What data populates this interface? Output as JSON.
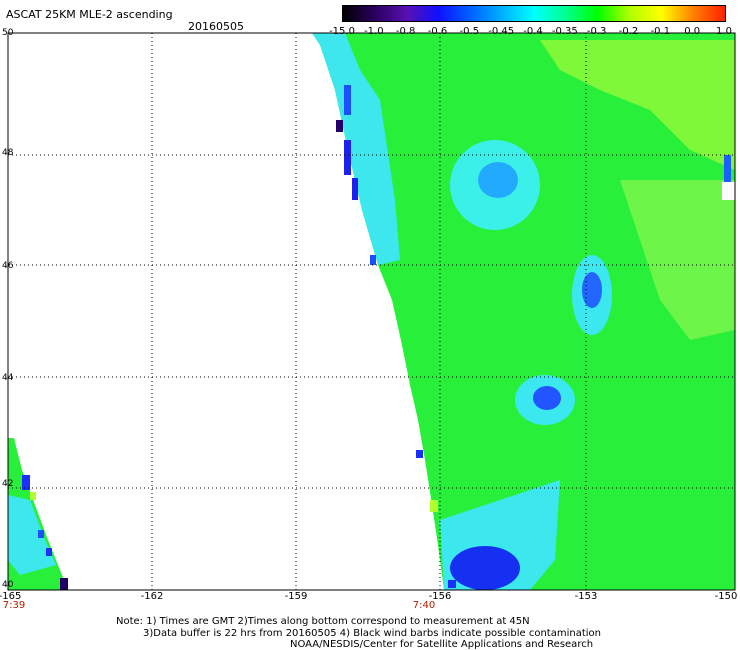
{
  "header": {
    "title": "ASCAT 25KM MLE-2 ascending",
    "date": "20160505"
  },
  "colorbar": {
    "labels": [
      "-15.0",
      "-1.0",
      "-0.8",
      "-0.6",
      "-0.5",
      "-0.45",
      "-0.4",
      "-0.35",
      "-0.3",
      "-0.2",
      "-0.1",
      "0.0",
      "1.0"
    ],
    "colors": [
      "#000000",
      "#2a0060",
      "#5a10b0",
      "#1010ff",
      "#0060ff",
      "#00b0ff",
      "#00ffff",
      "#00ff90",
      "#00ff00",
      "#b0ff00",
      "#ffff00",
      "#ff8000",
      "#ff2000"
    ]
  },
  "axes": {
    "lat_ticks": [
      "50",
      "48",
      "46",
      "44",
      "42",
      "40"
    ],
    "lon_ticks": [
      "-165",
      "-162",
      "-159",
      "-156",
      "-153",
      "-150"
    ],
    "time_labels": [
      "7:39",
      "7:40"
    ]
  },
  "notes": {
    "line1": "Note: 1) Times are GMT 2)Times along bottom correspond to measurement at 45N",
    "line2": "3)Data buffer is 22 hrs from 20160505 4) Black wind barbs indicate possible contamination",
    "line3": "NOAA/NESDIS/Center for Satellite Applications and Research"
  },
  "map_colors": {
    "green": "#22ee22",
    "light_green": "#88ff44",
    "cyan": "#22ffee",
    "blue": "#1133ee",
    "dark": "#220066"
  }
}
